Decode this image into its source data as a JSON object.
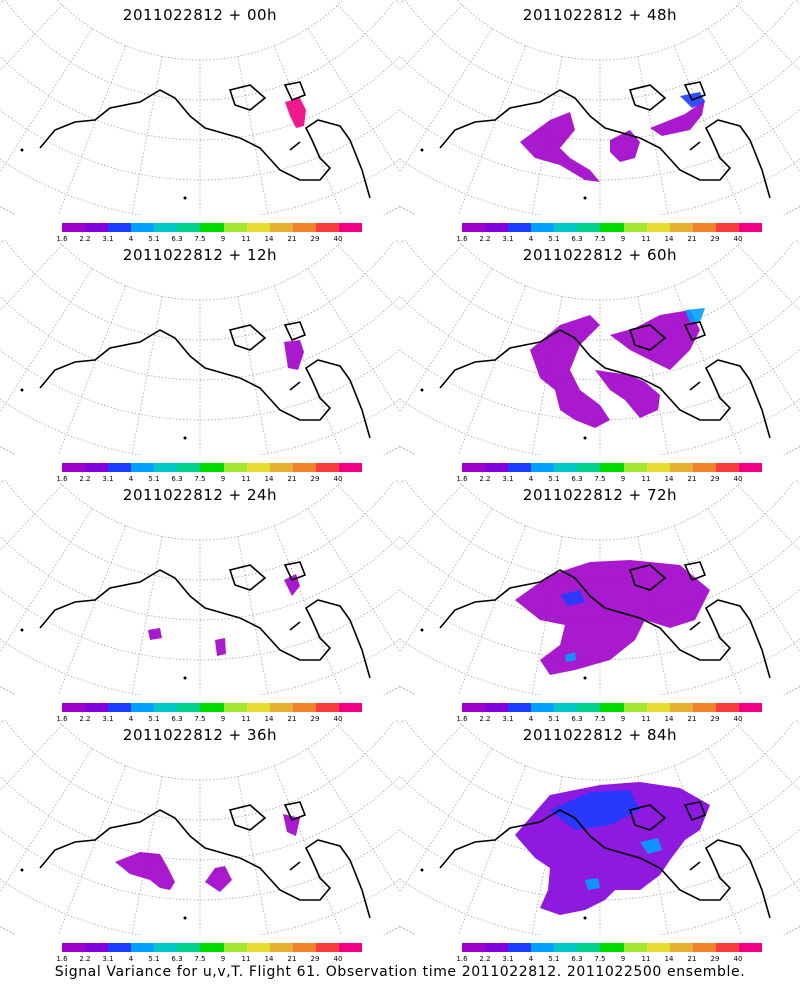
{
  "panels": [
    {
      "title": "2011022812 + 00h"
    },
    {
      "title": "2011022812 + 48h"
    },
    {
      "title": "2011022812 + 12h"
    },
    {
      "title": "2011022812 + 60h"
    },
    {
      "title": "2011022812 + 24h"
    },
    {
      "title": "2011022812 + 72h"
    },
    {
      "title": "2011022812 + 36h"
    },
    {
      "title": "2011022812 + 84h"
    }
  ],
  "colorbar": {
    "labels": [
      "1.6",
      "2.2",
      "3.1",
      "4",
      "5.1",
      "6.3",
      "7.5",
      "9",
      "11",
      "14",
      "21",
      "29",
      "40"
    ],
    "colors": [
      "#a000c8",
      "#8200dc",
      "#1e3cff",
      "#00a0ff",
      "#00c8c8",
      "#00d28c",
      "#00dc00",
      "#a0e632",
      "#e6dc32",
      "#e6af2d",
      "#f08228",
      "#fa3c3c",
      "#f00082"
    ]
  },
  "footer": "Signal Variance for u,v,T. Flight 61. Observation time 2011022812. 2011022500 ensemble."
}
